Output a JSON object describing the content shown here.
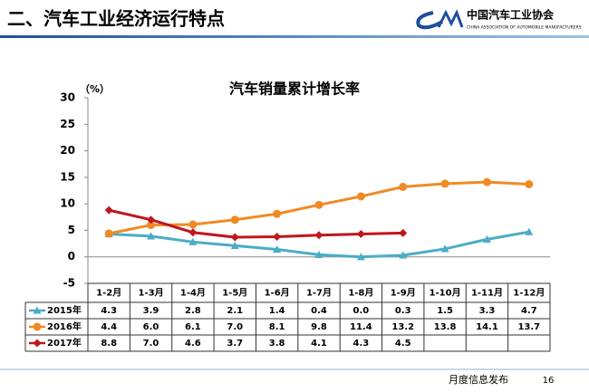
{
  "header": {
    "title": "二、汽车工业经济运行特点",
    "logo_text": "中国汽车工业协会",
    "logo_subtext": "CHINA ASSOCIATION OF AUTOMOBILE MANUFACTURERS"
  },
  "footer": {
    "text": "月度信息发布",
    "page": "16"
  },
  "chart_data": {
    "type": "line",
    "title": "汽车销量累计增长率",
    "y_unit": "（%）",
    "categories": [
      "1-2月",
      "1-3月",
      "1-4月",
      "1-5月",
      "1-6月",
      "1-7月",
      "1-8月",
      "1-9月",
      "1-10月",
      "1-11月",
      "1-12月"
    ],
    "series": [
      {
        "name": "2015年",
        "color": "#4bacc6",
        "marker": "triangle",
        "values": [
          4.3,
          3.9,
          2.8,
          2.1,
          1.4,
          0.4,
          0.0,
          0.3,
          1.5,
          3.3,
          4.7
        ],
        "value_labels": [
          "4.3",
          "3.9",
          "2.8",
          "2.1",
          "1.4",
          "0.4",
          "0.0",
          "0.3",
          "1.5",
          "3.3",
          "4.7"
        ]
      },
      {
        "name": "2016年",
        "color": "#f08a24",
        "marker": "circle",
        "values": [
          4.4,
          6.0,
          6.1,
          7.0,
          8.1,
          9.8,
          11.4,
          13.2,
          13.8,
          14.1,
          13.7
        ],
        "value_labels": [
          "4.4",
          "6.0",
          "6.1",
          "7.0",
          "8.1",
          "9.8",
          "11.4",
          "13.2",
          "13.8",
          "14.1",
          "13.7"
        ]
      },
      {
        "name": "2017年",
        "color": "#c0161d",
        "marker": "diamond",
        "values": [
          8.8,
          7.0,
          4.6,
          3.7,
          3.8,
          4.1,
          4.3,
          4.5,
          null,
          null,
          null
        ],
        "value_labels": [
          "8.8",
          "7.0",
          "4.6",
          "3.7",
          "3.8",
          "4.1",
          "4.3",
          "4.5",
          null,
          null,
          null
        ]
      }
    ],
    "ylim": [
      -5,
      30
    ],
    "yticks": [
      -5,
      0,
      5,
      10,
      15,
      20,
      25,
      30
    ]
  }
}
